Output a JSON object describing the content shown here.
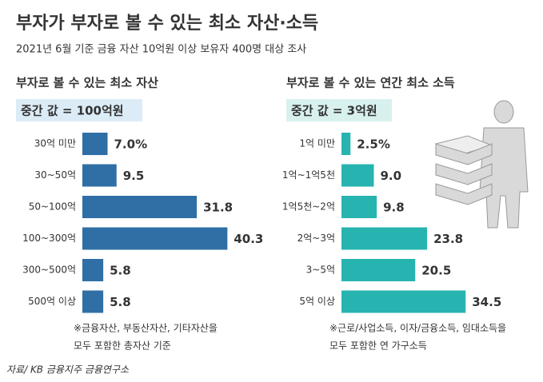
{
  "header": {
    "title": "부자가 부자로 볼 수 있는 최소 자산·소득",
    "subtitle": "2021년 6월 기준 금융 자산 10억원 이상 보유자 400명 대상 조사"
  },
  "chart_data": [
    {
      "type": "bar",
      "orientation": "horizontal",
      "title": "부자로 볼 수 있는 최소 자산",
      "annotation": "중간 값 = 100억원",
      "categories": [
        "30억 미만",
        "30~50억",
        "50~100억",
        "100~300억",
        "300~500억",
        "500억 이상"
      ],
      "values": [
        7.0,
        9.5,
        31.8,
        40.3,
        5.8,
        5.8
      ],
      "value_labels": [
        "7.0%",
        "9.5",
        "31.8",
        "40.3",
        "5.8",
        "5.8"
      ],
      "color": "#2f6fa5",
      "note": [
        "※금융자산, 부동산자산, 기타자산을",
        "모두 포함한 총자산 기준"
      ]
    },
    {
      "type": "bar",
      "orientation": "horizontal",
      "title": "부자로 볼 수 있는 연간 최소 소득",
      "annotation": "중간 값 = 3억원",
      "categories": [
        "1억 미만",
        "1억~1억5천",
        "1억5천~2억",
        "2억~3억",
        "3~5억",
        "5억 이상"
      ],
      "values": [
        2.5,
        9.0,
        9.8,
        23.8,
        20.5,
        34.5
      ],
      "value_labels": [
        "2.5%",
        "9.0",
        "9.8",
        "23.8",
        "20.5",
        "34.5"
      ],
      "color": "#27b4b0",
      "note": [
        "※근로/사업소득, 이자/금융소득, 임대소득을",
        "모두 포함한 연 가구소득"
      ]
    }
  ],
  "source": "자료/ KB 금융지주 금융연구소"
}
